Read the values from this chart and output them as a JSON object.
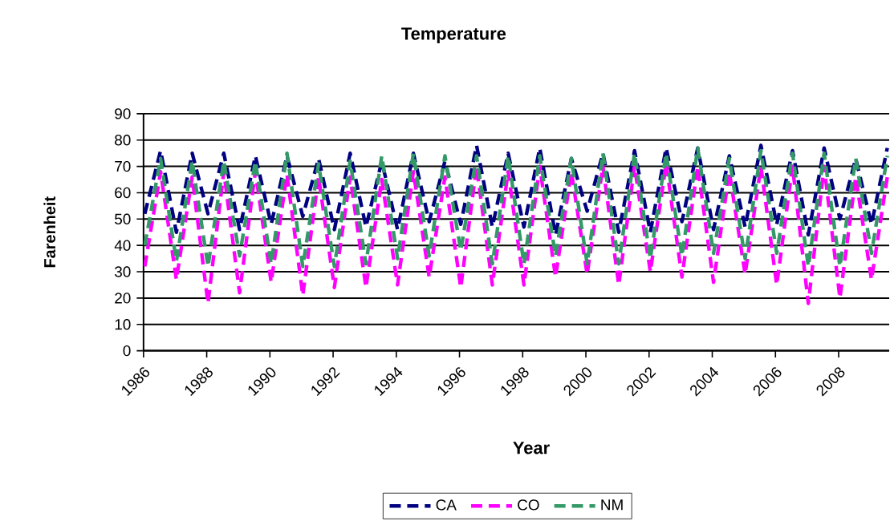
{
  "chart_data": {
    "type": "line",
    "title": "Temperature",
    "xlabel": "Year",
    "ylabel": "Farenheit",
    "x": [
      1986.04,
      1986.54,
      1987.04,
      1987.54,
      1988.04,
      1988.54,
      1989.04,
      1989.54,
      1990.04,
      1990.54,
      1991.04,
      1991.54,
      1992.04,
      1992.54,
      1993.04,
      1993.54,
      1994.04,
      1994.54,
      1995.04,
      1995.54,
      1996.04,
      1996.54,
      1997.04,
      1997.54,
      1998.04,
      1998.54,
      1999.04,
      1999.54,
      2000.04,
      2000.54,
      2001.04,
      2001.54,
      2002.04,
      2002.54,
      2003.04,
      2003.54,
      2004.04,
      2004.54,
      2005.04,
      2005.54,
      2006.04,
      2006.54,
      2007.04,
      2007.54,
      2008.04,
      2008.54,
      2009.04,
      2009.54
    ],
    "series": [
      {
        "name": "CA",
        "color": "#000080",
        "line_style": "dashed",
        "values": [
          52,
          76,
          45,
          75,
          52,
          75,
          46,
          74,
          48,
          74,
          51,
          73,
          46,
          75,
          47,
          72,
          46,
          75,
          49,
          72,
          48,
          78,
          47,
          75,
          47,
          77,
          44,
          73,
          53,
          75,
          45,
          76,
          45,
          77,
          49,
          77,
          46,
          74,
          47,
          78,
          48,
          76,
          44,
          77,
          50,
          73,
          48,
          77
        ]
      },
      {
        "name": "CO",
        "color": "#ff00ff",
        "line_style": "dashed",
        "values": [
          32,
          68,
          27,
          66,
          18,
          68,
          22,
          68,
          26,
          67,
          21,
          66,
          24,
          66,
          24,
          65,
          25,
          68,
          28,
          66,
          24,
          70,
          25,
          68,
          25,
          70,
          28,
          68,
          29,
          70,
          25,
          70,
          30,
          71,
          28,
          70,
          26,
          68,
          29,
          70,
          25,
          70,
          18,
          70,
          20,
          66,
          27,
          66
        ]
      },
      {
        "name": "NM",
        "color": "#339966",
        "line_style": "dashed",
        "values": [
          40,
          73,
          34,
          72,
          32,
          72,
          36,
          72,
          33,
          75,
          32,
          71,
          32,
          72,
          33,
          74,
          35,
          75,
          36,
          74,
          38,
          74,
          33,
          74,
          33,
          74,
          36,
          73,
          33,
          75,
          33,
          75,
          35,
          75,
          36,
          77,
          37,
          73,
          35,
          76,
          37,
          75,
          32,
          75,
          32,
          73,
          37,
          74
        ]
      }
    ],
    "xlim": [
      1986,
      2009.6
    ],
    "xticks": [
      1986,
      1988,
      1990,
      1992,
      1994,
      1996,
      1998,
      2000,
      2002,
      2004,
      2006,
      2008
    ],
    "ylim": [
      0,
      90
    ],
    "yticks": [
      0,
      10,
      20,
      30,
      40,
      50,
      60,
      70,
      80,
      90
    ],
    "grid": "y",
    "legend": "bottom"
  }
}
